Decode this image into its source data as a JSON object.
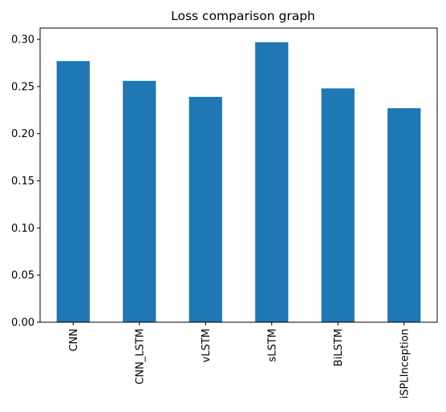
{
  "chart_data": {
    "type": "bar",
    "title": "Loss comparison graph",
    "xlabel": "",
    "ylabel": "",
    "categories": [
      "CNN",
      "CNN_LSTM",
      "vLSTM",
      "sLSTM",
      "BiLSTM",
      "iSPLInception"
    ],
    "values": [
      0.277,
      0.256,
      0.239,
      0.297,
      0.248,
      0.227
    ],
    "ylim": [
      0,
      0.312
    ],
    "yticks": [
      0.0,
      0.05,
      0.1,
      0.15,
      0.2,
      0.25,
      0.3
    ],
    "ytick_labels": [
      "0.00",
      "0.05",
      "0.10",
      "0.15",
      "0.20",
      "0.25",
      "0.30"
    ],
    "bar_color": "#1f77b4",
    "grid": false,
    "legend": "none"
  }
}
